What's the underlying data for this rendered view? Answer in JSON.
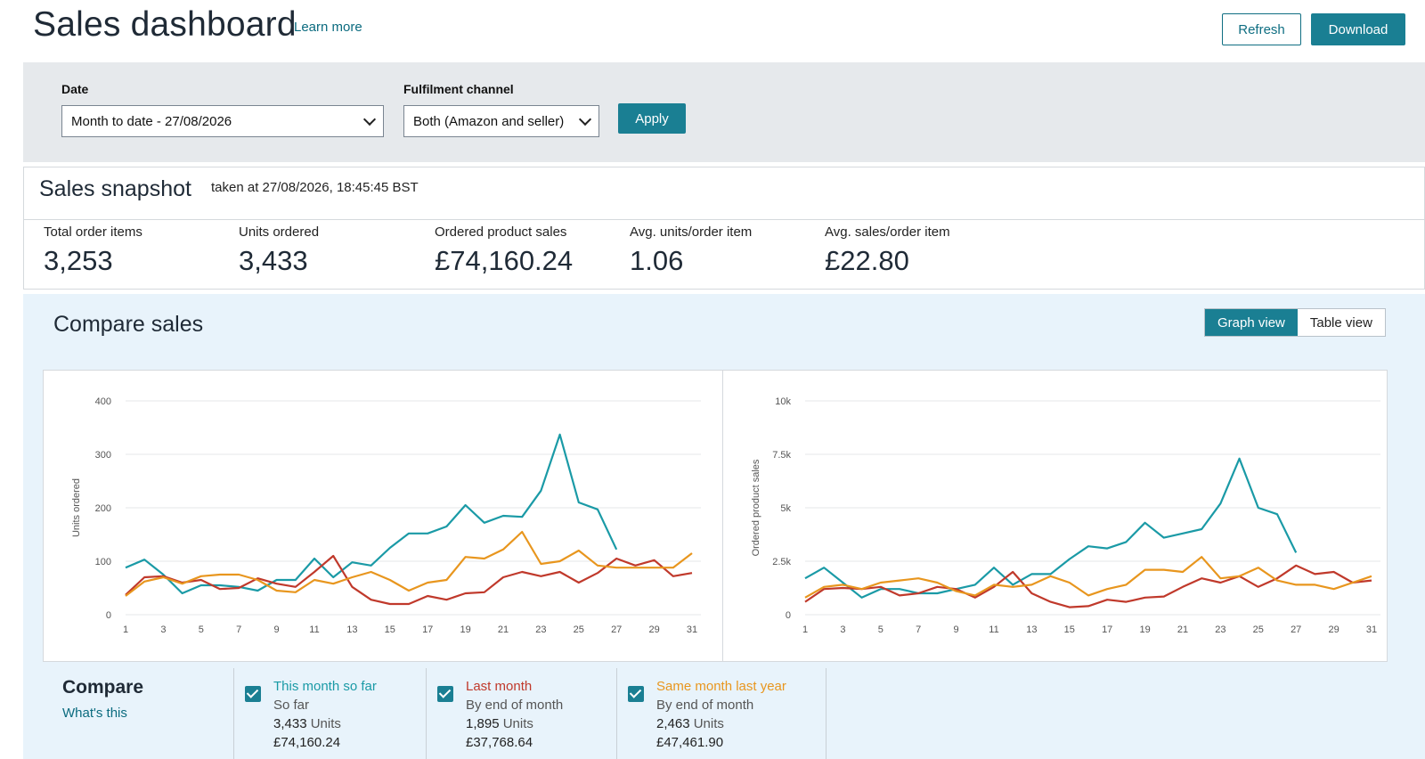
{
  "header": {
    "title": "Sales dashboard",
    "learn_more": "Learn more",
    "refresh_label": "Refresh",
    "download_label": "Download"
  },
  "filters": {
    "date_label": "Date",
    "date_value": "Month to date - 27/08/2026",
    "channel_label": "Fulfilment channel",
    "channel_value": "Both (Amazon and seller)",
    "apply_label": "Apply"
  },
  "snapshot": {
    "title": "Sales snapshot",
    "taken_at": "taken at 27/08/2026, 18:45:45 BST",
    "metrics": [
      {
        "label": "Total order items",
        "value": "3,253"
      },
      {
        "label": "Units ordered",
        "value": "3,433"
      },
      {
        "label": "Ordered product sales",
        "value": "£74,160.24"
      },
      {
        "label": "Avg. units/order item",
        "value": "1.06"
      },
      {
        "label": "Avg. sales/order item",
        "value": "£22.80"
      }
    ]
  },
  "compare": {
    "title": "Compare sales",
    "graph_view": "Graph view",
    "table_view": "Table view",
    "legend_title": "Compare",
    "whats_this": "What's this",
    "items": [
      {
        "name": "This month so far",
        "sub": "So far",
        "units": "3,433",
        "units_label": "Units",
        "sales": "£74,160.24",
        "color": "#1a9aa6"
      },
      {
        "name": "Last month",
        "sub": "By end of month",
        "units": "1,895",
        "units_label": "Units",
        "sales": "£37,768.64",
        "color": "#c0392b"
      },
      {
        "name": "Same month last year",
        "sub": "By end of month",
        "units": "2,463",
        "units_label": "Units",
        "sales": "£47,461.90",
        "color": "#e8961e"
      }
    ]
  },
  "chart_data": [
    {
      "type": "line",
      "ylabel": "Units ordered",
      "ylim": [
        0,
        400
      ],
      "yticks": [
        0,
        100,
        200,
        300,
        400
      ],
      "ytick_labels": [
        "0",
        "100",
        "200",
        "300",
        "400"
      ],
      "xticks": [
        1,
        3,
        5,
        7,
        9,
        11,
        13,
        15,
        17,
        19,
        21,
        23,
        25,
        27,
        29,
        31
      ],
      "grid": true,
      "series": [
        {
          "name": "This month so far",
          "color": "#1a9aa6",
          "x": [
            1,
            2,
            3,
            4,
            5,
            6,
            7,
            8,
            9,
            10,
            11,
            12,
            13,
            14,
            15,
            16,
            17,
            18,
            19,
            20,
            21,
            22,
            23,
            24,
            25,
            26,
            27
          ],
          "values": [
            88,
            103,
            75,
            40,
            55,
            55,
            52,
            45,
            65,
            65,
            105,
            70,
            98,
            92,
            125,
            152,
            152,
            165,
            205,
            172,
            185,
            183,
            232,
            337,
            210,
            197,
            122
          ]
        },
        {
          "name": "Last month",
          "color": "#c0392b",
          "x": [
            1,
            2,
            3,
            4,
            5,
            6,
            7,
            8,
            9,
            10,
            11,
            12,
            13,
            14,
            15,
            16,
            17,
            18,
            19,
            20,
            21,
            22,
            23,
            24,
            25,
            26,
            27,
            28,
            29,
            30,
            31
          ],
          "values": [
            37,
            70,
            72,
            60,
            65,
            48,
            50,
            68,
            58,
            52,
            80,
            110,
            52,
            28,
            20,
            20,
            35,
            28,
            40,
            42,
            70,
            80,
            72,
            80,
            60,
            78,
            105,
            92,
            102,
            72,
            78
          ]
        },
        {
          "name": "Same month last year",
          "color": "#e8961e",
          "x": [
            1,
            2,
            3,
            4,
            5,
            6,
            7,
            8,
            9,
            10,
            11,
            12,
            13,
            14,
            15,
            16,
            17,
            18,
            19,
            20,
            21,
            22,
            23,
            24,
            25,
            26,
            27,
            28,
            29,
            30,
            31
          ],
          "values": [
            35,
            62,
            70,
            58,
            72,
            75,
            75,
            65,
            45,
            42,
            65,
            58,
            70,
            80,
            65,
            45,
            60,
            65,
            108,
            105,
            122,
            155,
            95,
            100,
            120,
            92,
            88,
            88,
            88,
            88,
            115
          ]
        }
      ]
    },
    {
      "type": "line",
      "ylabel": "Ordered product sales",
      "ylim": [
        0,
        10000
      ],
      "yticks": [
        0,
        2500,
        5000,
        7500,
        10000
      ],
      "ytick_labels": [
        "0",
        "2.5k",
        "5k",
        "7.5k",
        "10k"
      ],
      "xticks": [
        1,
        3,
        5,
        7,
        9,
        11,
        13,
        15,
        17,
        19,
        21,
        23,
        25,
        27,
        29,
        31
      ],
      "grid": true,
      "series": [
        {
          "name": "This month so far",
          "color": "#1a9aa6",
          "x": [
            1,
            2,
            3,
            4,
            5,
            6,
            7,
            8,
            9,
            10,
            11,
            12,
            13,
            14,
            15,
            16,
            17,
            18,
            19,
            20,
            21,
            22,
            23,
            24,
            25,
            26,
            27
          ],
          "values": [
            1700,
            2200,
            1500,
            800,
            1200,
            1200,
            1000,
            1000,
            1200,
            1400,
            2200,
            1400,
            1900,
            1900,
            2600,
            3200,
            3100,
            3400,
            4300,
            3600,
            3800,
            4000,
            5200,
            7300,
            5000,
            4700,
            2900
          ]
        },
        {
          "name": "Last month",
          "color": "#c0392b",
          "x": [
            1,
            2,
            3,
            4,
            5,
            6,
            7,
            8,
            9,
            10,
            11,
            12,
            13,
            14,
            15,
            16,
            17,
            18,
            19,
            20,
            21,
            22,
            23,
            24,
            25,
            26,
            27,
            28,
            29,
            30,
            31
          ],
          "values": [
            600,
            1200,
            1250,
            1200,
            1300,
            900,
            1000,
            1300,
            1200,
            800,
            1300,
            2000,
            1000,
            600,
            350,
            400,
            700,
            600,
            800,
            850,
            1300,
            1700,
            1500,
            1800,
            1300,
            1700,
            2300,
            1900,
            2000,
            1500,
            1600
          ]
        },
        {
          "name": "Same month last year",
          "color": "#e8961e",
          "x": [
            1,
            2,
            3,
            4,
            5,
            6,
            7,
            8,
            9,
            10,
            11,
            12,
            13,
            14,
            15,
            16,
            17,
            18,
            19,
            20,
            21,
            22,
            23,
            24,
            25,
            26,
            27,
            28,
            29,
            30,
            31
          ],
          "values": [
            800,
            1300,
            1400,
            1200,
            1500,
            1600,
            1700,
            1500,
            1100,
            900,
            1400,
            1300,
            1400,
            1800,
            1500,
            900,
            1200,
            1400,
            2100,
            2100,
            2000,
            2700,
            1700,
            1800,
            2200,
            1600,
            1400,
            1400,
            1200,
            1500,
            1800
          ]
        }
      ]
    }
  ]
}
